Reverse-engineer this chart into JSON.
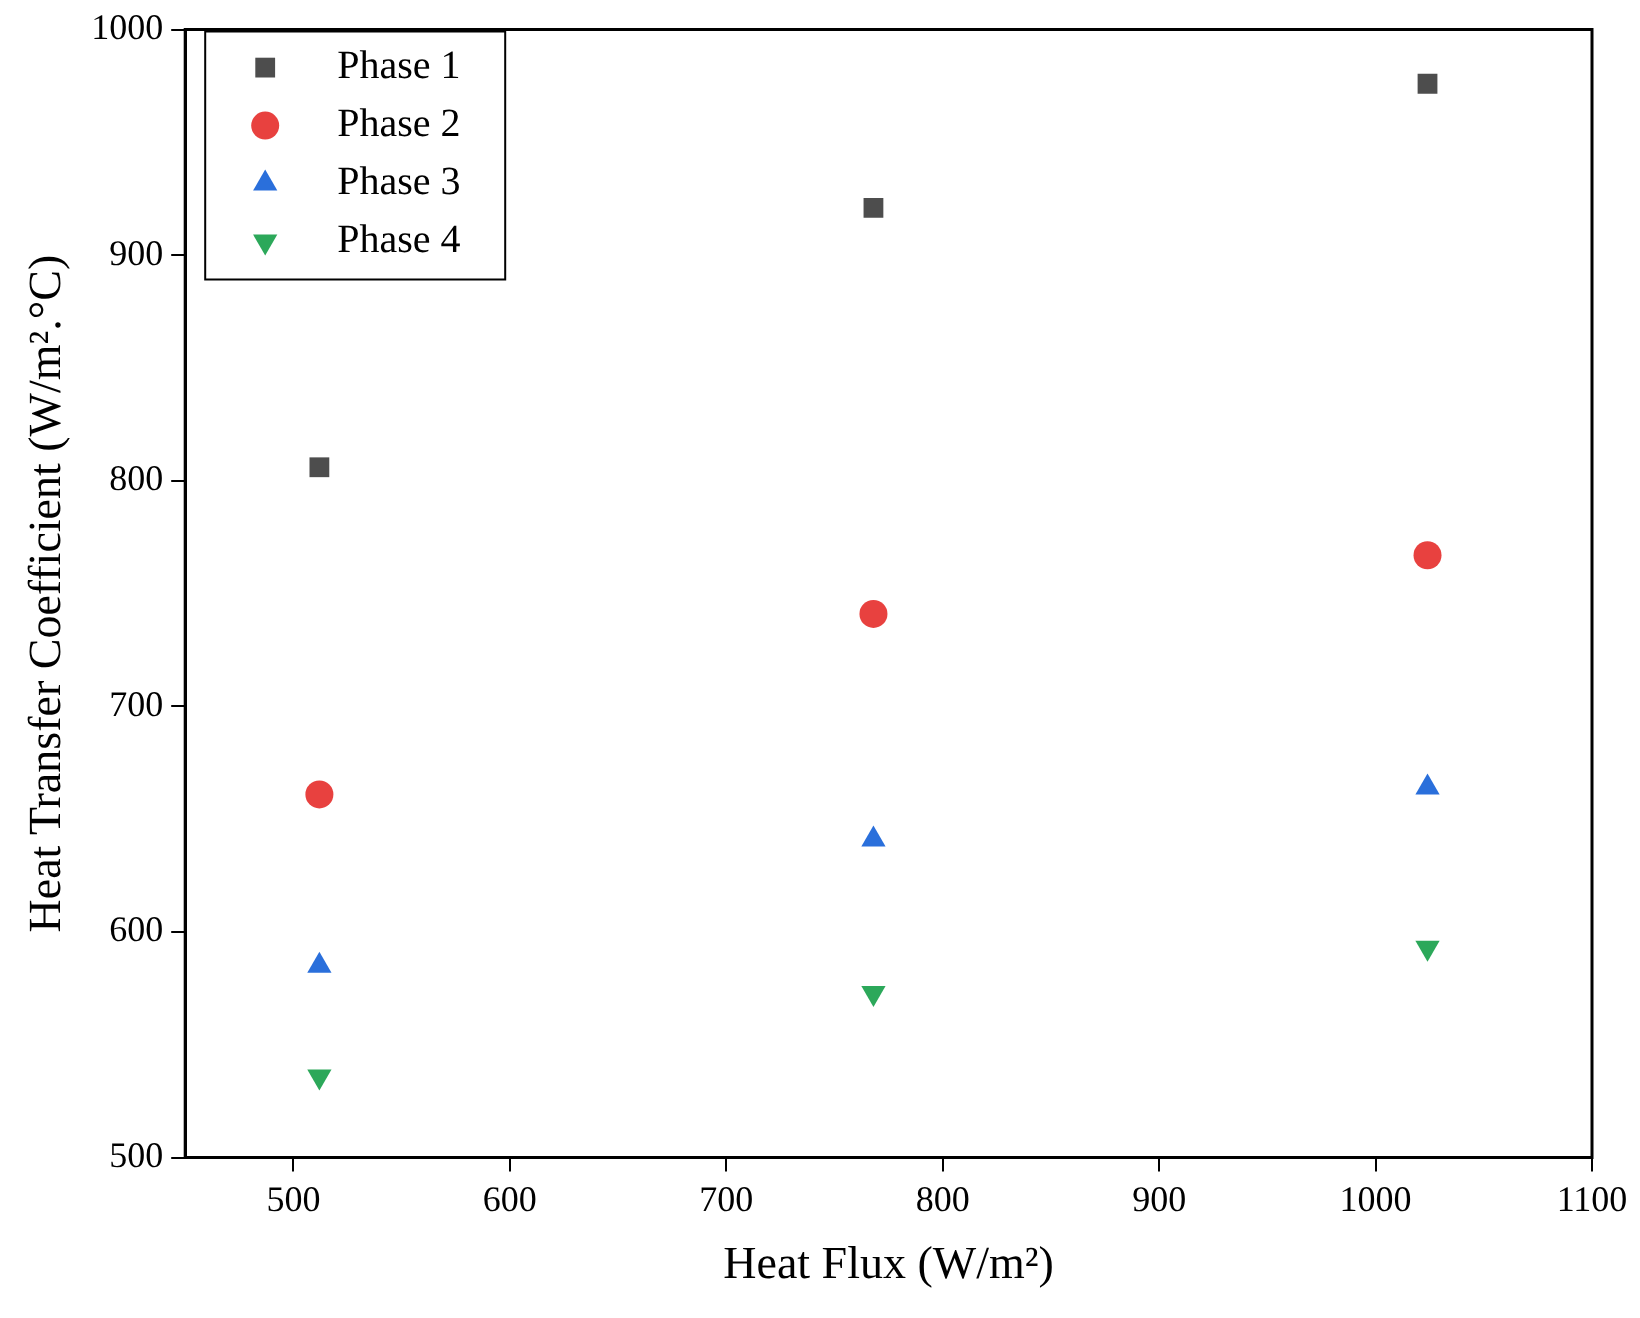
{
  "chart_data": {
    "type": "scatter",
    "xlabel": "Heat Flux (W/m²)",
    "ylabel": "Heat Transfer Coefficient (W/m².°C)",
    "x": [
      512,
      768,
      1024
    ],
    "series": [
      {
        "name": "Phase 1",
        "color": "#4d4d4d",
        "marker": "square",
        "values": [
          806,
          921,
          976
        ]
      },
      {
        "name": "Phase 2",
        "color": "#e8413f",
        "marker": "circle",
        "values": [
          661,
          741,
          767
        ]
      },
      {
        "name": "Phase 3",
        "color": "#2a6fdb",
        "marker": "triangle",
        "values": [
          585,
          641,
          664
        ]
      },
      {
        "name": "Phase 4",
        "color": "#2ca85a",
        "marker": "triangle-down",
        "values": [
          536,
          573,
          593
        ]
      }
    ],
    "xlim": [
      450,
      1100
    ],
    "xticks": [
      500,
      600,
      700,
      800,
      900,
      1000,
      1100
    ],
    "ylim": [
      500,
      1000
    ],
    "yticks": [
      500,
      600,
      700,
      800,
      900,
      1000
    ],
    "grid": false,
    "legend": "top left"
  }
}
